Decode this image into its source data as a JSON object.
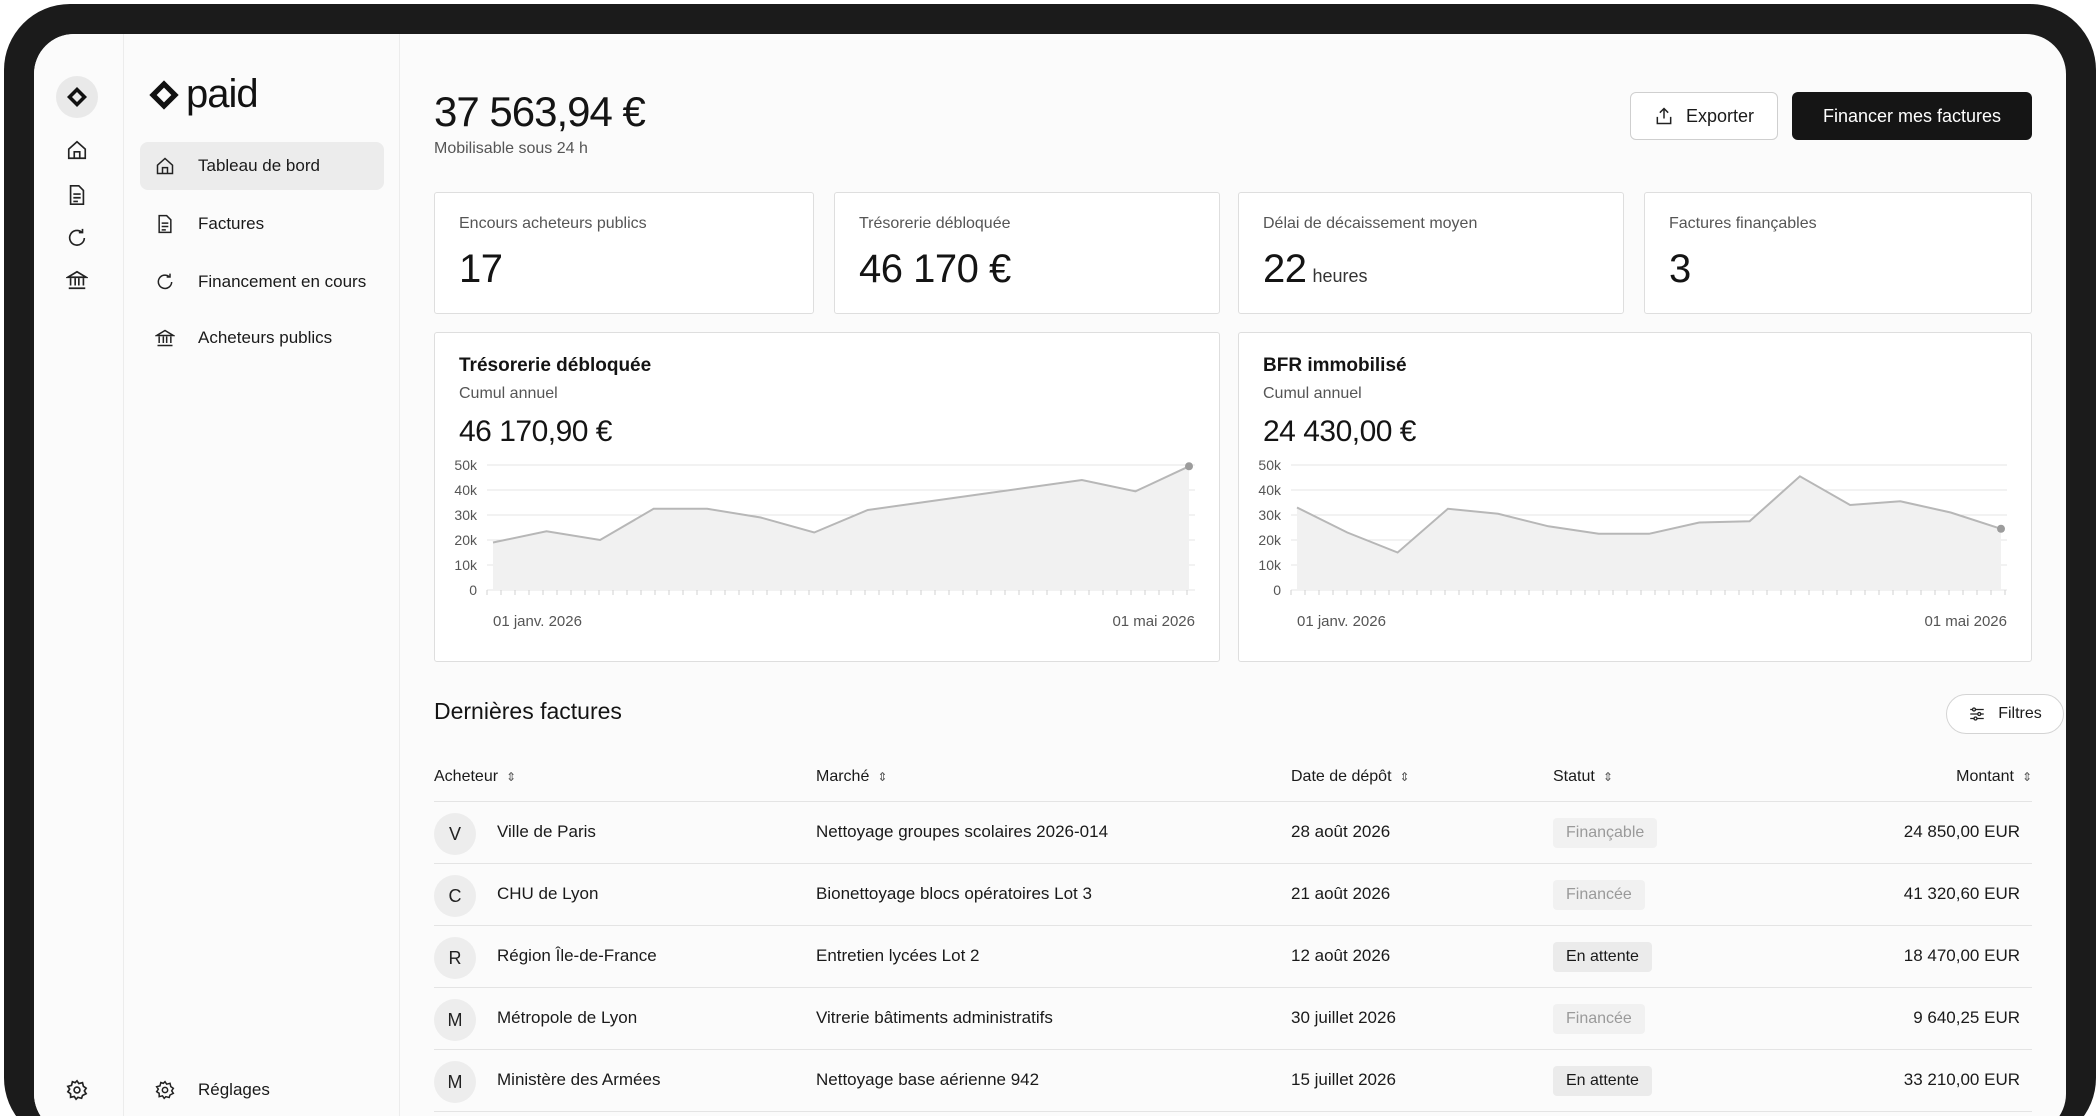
{
  "brand": {
    "name": "paid"
  },
  "nav": {
    "items": [
      {
        "label": "Tableau de bord",
        "icon": "home-icon",
        "active": true
      },
      {
        "label": "Factures",
        "icon": "document-icon",
        "active": false
      },
      {
        "label": "Financement en cours",
        "icon": "refresh-icon",
        "active": false
      },
      {
        "label": "Acheteurs publics",
        "icon": "bank-icon",
        "active": false
      }
    ],
    "settings_label": "Réglages"
  },
  "header": {
    "balance": "37 563,94 €",
    "balance_sub": "Mobilisable sous 24 h",
    "export_label": "Exporter",
    "finance_label": "Financer mes factures"
  },
  "kpis": [
    {
      "label": "Encours acheteurs publics",
      "value": "17",
      "unit": ""
    },
    {
      "label": "Trésorerie débloquée",
      "value": "46 170 €",
      "unit": ""
    },
    {
      "label": "Délai de décaissement moyen",
      "value": "22",
      "unit": "heures"
    },
    {
      "label": "Factures finançables",
      "value": "3",
      "unit": ""
    }
  ],
  "charts": {
    "left": {
      "title": "Trésorerie débloquée",
      "subtitle": "Cumul annuel",
      "value": "46 170,90 €"
    },
    "right": {
      "title": "BFR immobilisé",
      "subtitle": "Cumul annuel",
      "value": "24 430,00 €"
    }
  },
  "chart_data": [
    {
      "type": "area",
      "title": "Trésorerie débloquée",
      "y_ticks": [
        "50k",
        "40k",
        "30k",
        "20k",
        "10k",
        "0"
      ],
      "ylim": [
        0,
        50000
      ],
      "x_labels": [
        "01 janv. 2026",
        "01 mai 2026"
      ],
      "series": [
        {
          "values": [
            19000,
            23500,
            20000,
            32500,
            32500,
            29000,
            23000,
            32000,
            35000,
            38000,
            41000,
            44000,
            39500,
            49500
          ]
        }
      ],
      "grid": true
    },
    {
      "type": "area",
      "title": "BFR immobilisé",
      "y_ticks": [
        "50k",
        "40k",
        "30k",
        "20k",
        "10k",
        "0"
      ],
      "ylim": [
        0,
        50000
      ],
      "x_labels": [
        "01 janv. 2026",
        "01 mai 2026"
      ],
      "series": [
        {
          "values": [
            33000,
            23000,
            15000,
            32500,
            30500,
            25500,
            22500,
            22500,
            27000,
            27500,
            45500,
            34000,
            35500,
            31000,
            24500
          ]
        }
      ],
      "grid": true
    }
  ],
  "invoices": {
    "title": "Dernières factures",
    "filter_label": "Filtres",
    "columns": [
      "Acheteur",
      "Marché",
      "Date de dépôt",
      "Statut",
      "Montant"
    ],
    "rows": [
      {
        "initial": "V",
        "buyer": "Ville de Paris",
        "market": "Nettoyage groupes scolaires 2026-014",
        "date": "28 août 2026",
        "status": "Finançable",
        "amount": "24 850,00 EUR"
      },
      {
        "initial": "C",
        "buyer": "CHU de Lyon",
        "market": "Bionettoyage blocs opératoires Lot 3",
        "date": "21 août 2026",
        "status": "Financée",
        "amount": "41 320,60 EUR"
      },
      {
        "initial": "R",
        "buyer": "Région Île-de-France",
        "market": "Entretien lycées Lot 2",
        "date": "12 août 2026",
        "status": "En attente",
        "amount": "18 470,00 EUR"
      },
      {
        "initial": "M",
        "buyer": "Métropole de Lyon",
        "market": "Vitrerie bâtiments administratifs",
        "date": "30 juillet 2026",
        "status": "Financée",
        "amount": "9 640,25 EUR"
      },
      {
        "initial": "M",
        "buyer": "Ministère des Armées",
        "market": "Nettoyage base aérienne 942",
        "date": "15 juillet 2026",
        "status": "En attente",
        "amount": "33 210,00 EUR"
      }
    ]
  }
}
